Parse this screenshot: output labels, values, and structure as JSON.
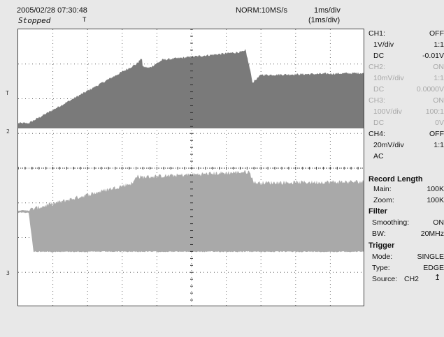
{
  "header": {
    "datetime": "2005/02/28  07:30:48",
    "status": "Stopped",
    "trigger_marker": "T",
    "acquisition": "NORM:10MS/s",
    "timebase": "1ms/div",
    "zoom_timebase": "(1ms/div)"
  },
  "markers": {
    "trig": "T",
    "ch2": "2",
    "ch3": "3"
  },
  "channels": [
    {
      "name": "CH1:",
      "state": "OFF",
      "scale": "1V/div",
      "probe": "1:1",
      "coupling": "DC",
      "offset": "-0.01V",
      "active": true
    },
    {
      "name": "CH2:",
      "state": "ON",
      "scale": "10mV/div",
      "probe": "1:1",
      "coupling": "DC",
      "offset": "0.0000V",
      "active": false
    },
    {
      "name": "CH3:",
      "state": "ON",
      "scale": "100V/div",
      "probe": "100:1",
      "coupling": "DC",
      "offset": "0V",
      "active": false
    },
    {
      "name": "CH4:",
      "state": "OFF",
      "scale": "20mV/div",
      "probe": "1:1",
      "coupling": "AC",
      "offset": "",
      "active": true
    }
  ],
  "record": {
    "title": "Record Length",
    "main_label": "Main:",
    "main_value": "100K",
    "zoom_label": "Zoom:",
    "zoom_value": "100K"
  },
  "filter": {
    "title": "Filter",
    "smooth_label": "Smoothing:",
    "smooth_value": "ON",
    "bw_label": "BW:",
    "bw_value": "20MHz"
  },
  "trigger": {
    "title": "Trigger",
    "mode_label": "Mode:",
    "mode_value": "SINGLE",
    "type_label": "Type:",
    "type_value": "EDGE",
    "source_label": "Source:",
    "source_value": "CH2"
  },
  "colors": {
    "trace_upper": "#7a7a7a",
    "trace_lower": "#a9a9a9",
    "screen": "#ffffff",
    "background": "#e8e8e8"
  }
}
